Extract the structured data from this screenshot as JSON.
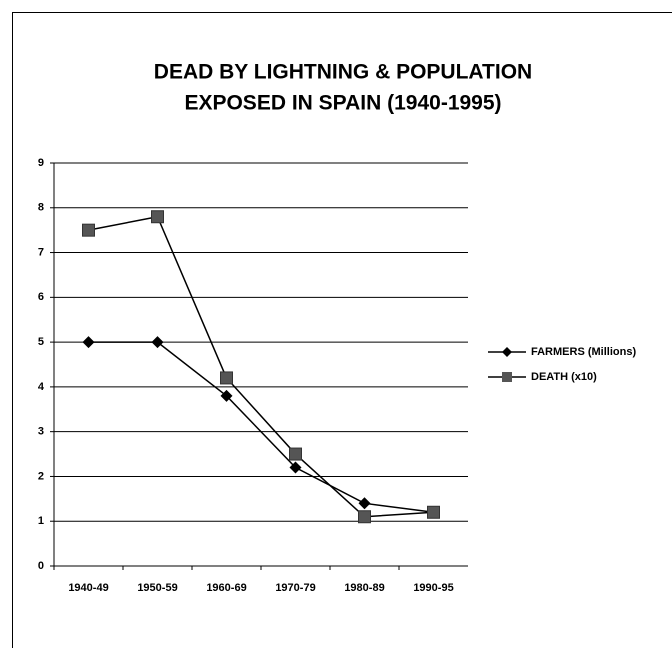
{
  "chart_data": {
    "type": "line",
    "title": [
      "DEAD  BY LIGHTNING & POPULATION",
      "EXPOSED IN SPAIN (1940-1995)"
    ],
    "categories": [
      "1940-49",
      "1950-59",
      "1960-69",
      "1970-79",
      "1980-89",
      "1990-95"
    ],
    "series": [
      {
        "name": "FARMERS (Millions)",
        "color": "#000000",
        "marker": "diamond",
        "values": [
          5,
          5,
          3.8,
          2.2,
          1.4,
          1.2
        ]
      },
      {
        "name": "DEATH (x10)",
        "color": "#555555",
        "marker": "square",
        "values": [
          7.5,
          7.8,
          4.2,
          2.5,
          1.1,
          1.2
        ]
      }
    ],
    "ylim": [
      0,
      9
    ],
    "yticks": [
      0,
      1,
      2,
      3,
      4,
      5,
      6,
      7,
      8,
      9
    ],
    "grid": true,
    "legend": "right"
  }
}
